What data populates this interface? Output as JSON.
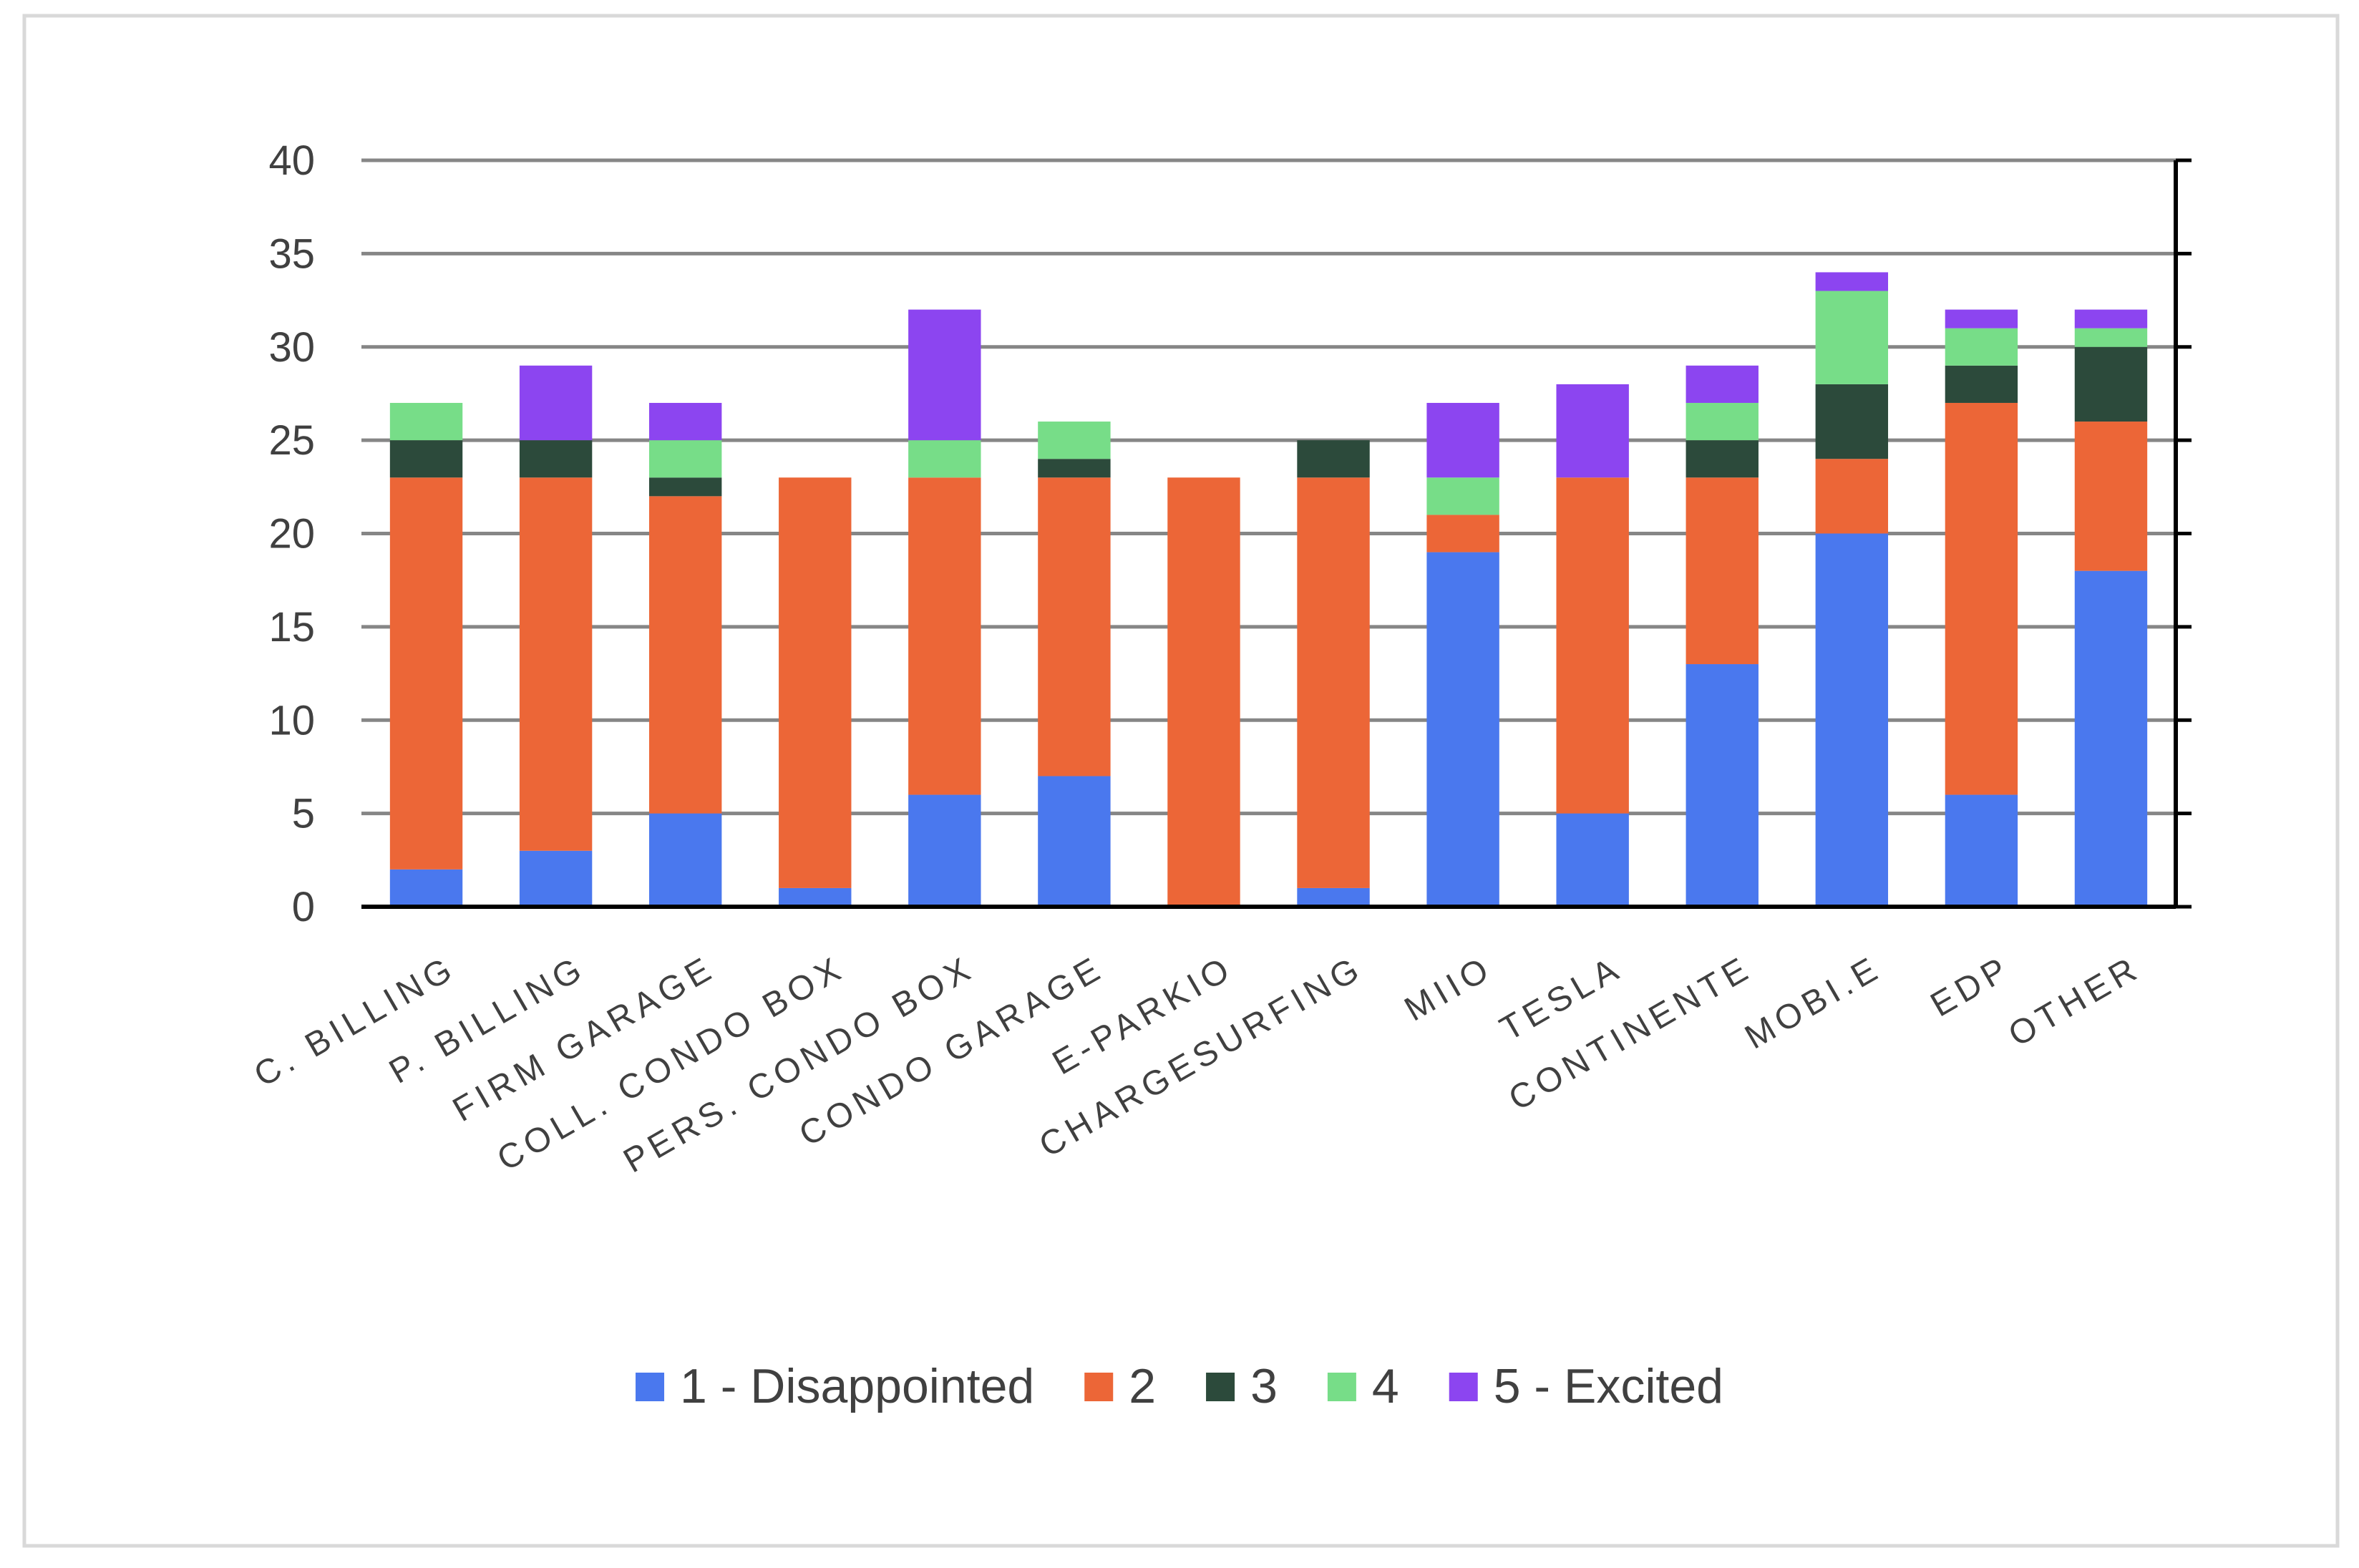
{
  "chart_data": {
    "type": "bar",
    "stacked": true,
    "categories": [
      "C. BILLING",
      "P. BILLING",
      "FIRM GARAGE",
      "COLL. CONDO BOX",
      "PERS. CONDO BOX",
      "CONDO GARAGE",
      "E-PARKIO",
      "CHARGESURFING",
      "MIIO",
      "TESLA",
      "CONTINENTE",
      "MOBI.E",
      "EDP",
      "OTHER"
    ],
    "series": [
      {
        "name": "1 - Disappointed",
        "color": "#4a78ee",
        "values": [
          2,
          3,
          5,
          1,
          6,
          7,
          0,
          1,
          19,
          5,
          13,
          20,
          6,
          18
        ]
      },
      {
        "name": "2",
        "color": "#ec6637",
        "values": [
          21,
          20,
          17,
          22,
          17,
          16,
          23,
          22,
          2,
          18,
          10,
          4,
          21,
          8
        ]
      },
      {
        "name": "3",
        "color": "#2c4a3b",
        "values": [
          2,
          2,
          1,
          0,
          0,
          1,
          0,
          2,
          0,
          0,
          2,
          4,
          2,
          4
        ]
      },
      {
        "name": "4",
        "color": "#77dd88",
        "values": [
          2,
          0,
          2,
          0,
          2,
          2,
          0,
          0,
          2,
          0,
          2,
          5,
          2,
          1
        ]
      },
      {
        "name": "5 - Excited",
        "color": "#8c45f0",
        "values": [
          0,
          4,
          2,
          0,
          7,
          0,
          0,
          0,
          4,
          5,
          2,
          1,
          1,
          1
        ]
      }
    ],
    "title": "",
    "xlabel": "",
    "ylabel": "",
    "ylim": [
      0,
      40
    ],
    "yticks": [
      "0",
      "5",
      "10",
      "15",
      "20",
      "25",
      "30",
      "35",
      "40"
    ],
    "grid": true,
    "legend_position": "bottom"
  }
}
